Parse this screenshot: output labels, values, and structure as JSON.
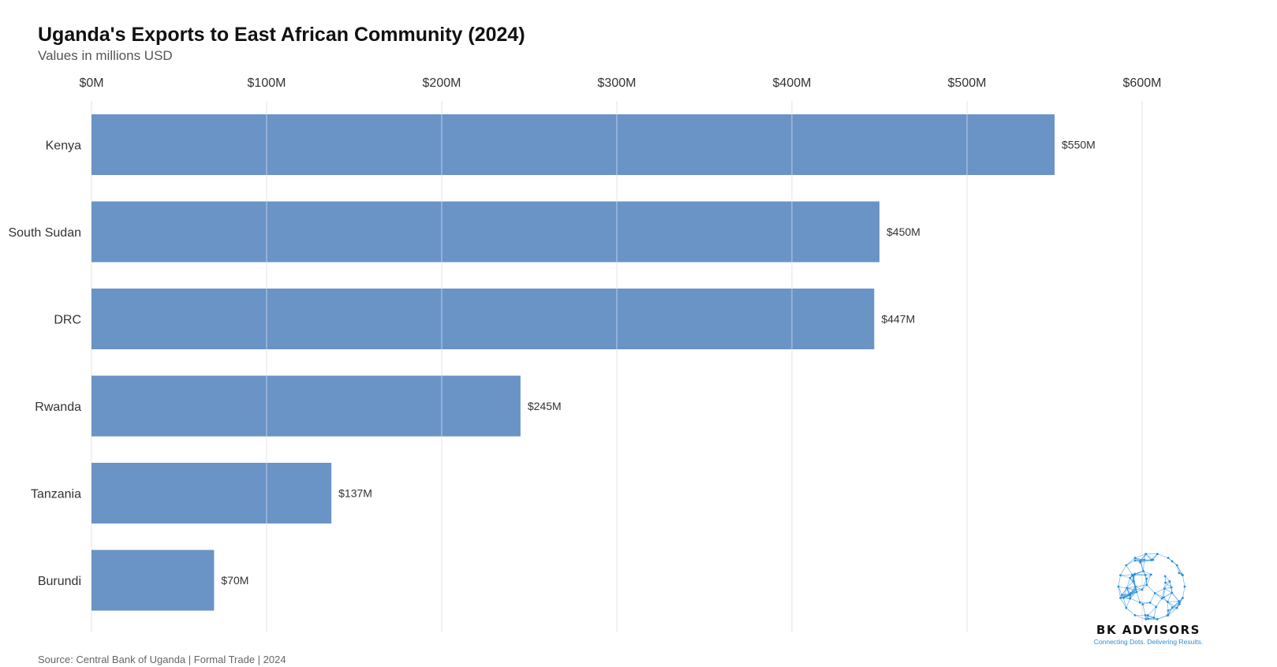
{
  "chart_data": {
    "type": "bar",
    "orientation": "horizontal",
    "title": "Uganda's Exports to East African Community (2024)",
    "subtitle": "Values in millions USD",
    "categories": [
      "Kenya",
      "South Sudan",
      "DRC",
      "Rwanda",
      "Tanzania",
      "Burundi"
    ],
    "values": [
      550,
      450,
      447,
      245,
      137,
      70
    ],
    "value_labels": [
      "$550M",
      "$450M",
      "$447M",
      "$245M",
      "$137M",
      "$70M"
    ],
    "xlim": [
      0,
      600
    ],
    "x_ticks": [
      0,
      100,
      200,
      300,
      400,
      500,
      600
    ],
    "x_tick_labels": [
      "$0M",
      "$100M",
      "$200M",
      "$300M",
      "$400M",
      "$500M",
      "$600M"
    ],
    "x_axis_position": "top",
    "grid": true,
    "bar_color": "#6a93c6",
    "source": "Source: Central Bank of Uganda | Formal Trade | 2024"
  },
  "logo": {
    "name": "BK ADVISORS",
    "tagline": "Connecting Dots. Delivering Results.",
    "accent_color": "#2a8fd8"
  }
}
